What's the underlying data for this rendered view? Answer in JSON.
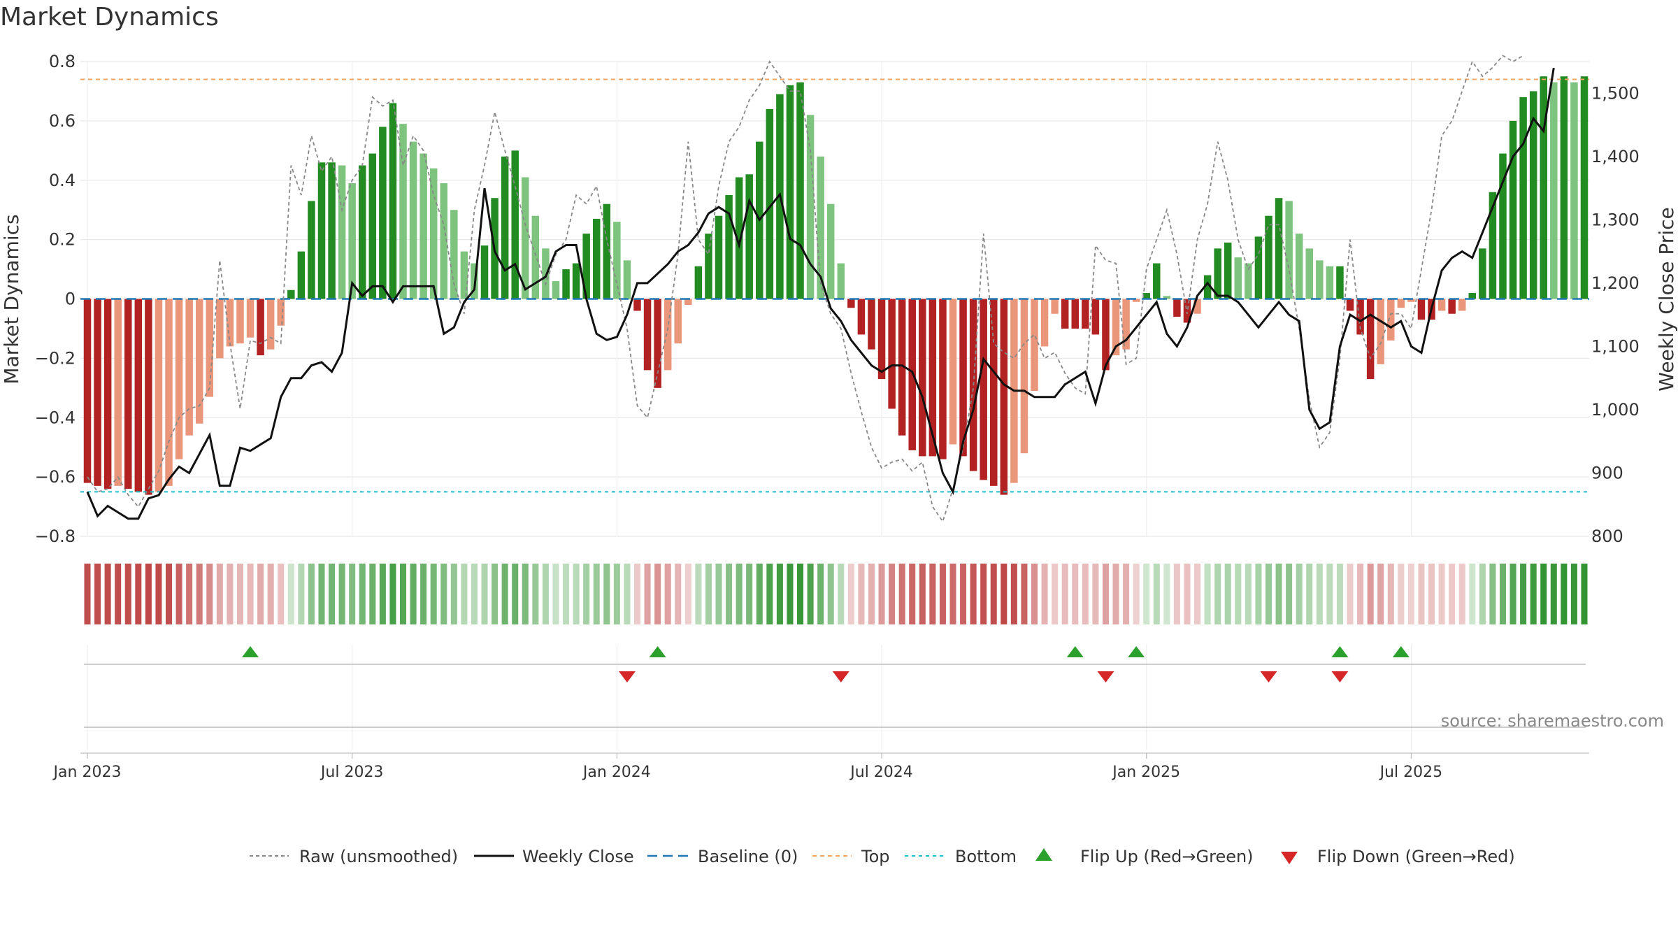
{
  "chart_data": {
    "type": "bar",
    "title": "Market Dynamics",
    "ylabel": "Market Dynamics",
    "y2label": "Weekly Close Price",
    "ylim": [
      -0.8,
      0.8
    ],
    "y2lim": [
      800,
      1550
    ],
    "yticks": [
      "0.8",
      "0.6",
      "0.4",
      "0.2",
      "0",
      "−0.2",
      "−0.4",
      "−0.6",
      "−0.8"
    ],
    "y2ticks": [
      "1,500",
      "1,400",
      "1,300",
      "1,200",
      "1,100",
      "1,000",
      "900",
      "800"
    ],
    "xticks": [
      "Jan 2023",
      "Jul 2023",
      "Jan 2024",
      "Jul 2024",
      "Jan 2025",
      "Jul 2025"
    ],
    "xtick_positions": [
      0,
      26,
      52,
      78,
      104,
      130
    ],
    "x_start": "Jan 2023",
    "weeks": 140,
    "top": 0.74,
    "bottom": -0.65,
    "source": "source: sharemaestro.com",
    "grid": true,
    "legend_position": "bottom",
    "legend": [
      "Raw (unsmoothed)",
      "Weekly Close",
      "Baseline (0)",
      "Top",
      "Bottom",
      "Flip Up (Red→Green)",
      "Flip Down (Green→Red)"
    ],
    "colors": {
      "strong_green": "#228b22",
      "light_green": "#7ec47e",
      "strong_red": "#b22222",
      "light_red": "#e9967a",
      "raw": "#888888",
      "close": "#111111",
      "baseline": "#1f77b4",
      "top": "#f4a460",
      "bottom": "#17becf",
      "flip_up": "#2ca02c",
      "flip_down": "#d62728"
    },
    "flips_up": [
      16,
      56,
      97,
      103,
      123,
      129
    ],
    "flips_down": [
      53,
      74,
      100,
      116,
      123
    ],
    "series": [
      {
        "name": "Market Dynamics",
        "values": [
          -0.62,
          -0.63,
          -0.64,
          -0.63,
          -0.64,
          -0.65,
          -0.66,
          -0.65,
          -0.63,
          -0.54,
          -0.46,
          -0.42,
          -0.33,
          -0.2,
          -0.16,
          -0.15,
          -0.13,
          -0.19,
          -0.17,
          -0.09,
          0.03,
          0.16,
          0.33,
          0.46,
          0.46,
          0.45,
          0.39,
          0.45,
          0.49,
          0.58,
          0.66,
          0.59,
          0.53,
          0.49,
          0.44,
          0.39,
          0.3,
          0.16,
          0.12,
          0.18,
          0.34,
          0.48,
          0.5,
          0.41,
          0.28,
          0.17,
          0.06,
          0.1,
          0.12,
          0.22,
          0.27,
          0.32,
          0.26,
          0.13,
          -0.04,
          -0.24,
          -0.3,
          -0.24,
          -0.15,
          -0.02,
          0.11,
          0.22,
          0.28,
          0.35,
          0.41,
          0.42,
          0.53,
          0.64,
          0.69,
          0.72,
          0.73,
          0.62,
          0.48,
          0.32,
          0.12,
          -0.03,
          -0.12,
          -0.17,
          -0.27,
          -0.37,
          -0.46,
          -0.51,
          -0.53,
          -0.53,
          -0.54,
          -0.49,
          -0.53,
          -0.58,
          -0.61,
          -0.63,
          -0.66,
          -0.62,
          -0.52,
          -0.31,
          -0.16,
          -0.05,
          -0.1,
          -0.1,
          -0.1,
          -0.12,
          -0.24,
          -0.19,
          -0.17,
          -0.01,
          0.02,
          0.12,
          0.01,
          -0.06,
          -0.08,
          -0.05,
          0.08,
          0.17,
          0.19,
          0.14,
          0.12,
          0.21,
          0.28,
          0.34,
          0.33,
          0.22,
          0.17,
          0.13,
          0.11,
          0.11,
          -0.04,
          -0.12,
          -0.27,
          -0.22,
          -0.14,
          -0.03,
          -0.01,
          -0.07,
          -0.07,
          -0.04,
          -0.05,
          -0.04,
          0.02,
          0.17,
          0.36,
          0.49,
          0.6,
          0.68,
          0.7,
          0.75,
          0.73,
          0.75,
          0.73,
          0.75
        ]
      },
      {
        "name": "Raw (unsmoothed)",
        "values": [
          -0.6,
          -0.65,
          -0.64,
          -0.6,
          -0.66,
          -0.7,
          -0.64,
          -0.58,
          -0.48,
          -0.4,
          -0.37,
          -0.36,
          -0.3,
          0.13,
          -0.15,
          -0.37,
          -0.14,
          -0.15,
          -0.13,
          -0.15,
          0.45,
          0.35,
          0.55,
          0.43,
          0.48,
          0.3,
          0.4,
          0.45,
          0.68,
          0.65,
          0.67,
          0.45,
          0.55,
          0.5,
          0.35,
          0.25,
          0.05,
          -0.05,
          0.3,
          0.45,
          0.63,
          0.5,
          0.38,
          0.25,
          0.15,
          0.05,
          0.15,
          0.2,
          0.35,
          0.32,
          0.38,
          0.2,
          0.05,
          -0.1,
          -0.36,
          -0.4,
          -0.25,
          -0.1,
          0.15,
          0.53,
          0.2,
          0.15,
          0.38,
          0.53,
          0.58,
          0.67,
          0.72,
          0.8,
          0.75,
          0.7,
          0.7,
          0.5,
          0.05,
          -0.05,
          -0.1,
          -0.25,
          -0.38,
          -0.5,
          -0.57,
          -0.55,
          -0.54,
          -0.58,
          -0.55,
          -0.7,
          -0.75,
          -0.64,
          -0.5,
          -0.3,
          0.22,
          -0.15,
          -0.18,
          -0.2,
          -0.15,
          -0.12,
          -0.2,
          -0.18,
          -0.25,
          -0.3,
          -0.32,
          0.18,
          0.13,
          0.12,
          -0.22,
          -0.2,
          0.1,
          0.2,
          0.3,
          0.15,
          -0.05,
          0.2,
          0.32,
          0.53,
          0.4,
          0.2,
          0.1,
          0.15,
          0.25,
          0.25,
          0.1,
          -0.1,
          -0.34,
          -0.5,
          -0.45,
          -0.2,
          0.2,
          -0.1,
          -0.2,
          -0.15,
          -0.05,
          -0.05,
          -0.1,
          0.1,
          0.3,
          0.55,
          0.6,
          0.7,
          0.8,
          0.75,
          0.78,
          0.82,
          0.8,
          0.82
        ]
      },
      {
        "name": "Weekly Close",
        "values": [
          870,
          832,
          848,
          838,
          828,
          828,
          860,
          865,
          890,
          910,
          900,
          930,
          960,
          880,
          880,
          940,
          935,
          945,
          955,
          1020,
          1050,
          1050,
          1070,
          1075,
          1060,
          1090,
          1200,
          1180,
          1195,
          1195,
          1170,
          1195,
          1195,
          1195,
          1195,
          1120,
          1130,
          1170,
          1190,
          1350,
          1250,
          1220,
          1230,
          1190,
          1200,
          1210,
          1250,
          1260,
          1260,
          1175,
          1120,
          1110,
          1115,
          1150,
          1200,
          1200,
          1215,
          1230,
          1250,
          1260,
          1280,
          1310,
          1320,
          1310,
          1260,
          1330,
          1300,
          1320,
          1340,
          1270,
          1260,
          1230,
          1210,
          1160,
          1140,
          1110,
          1090,
          1070,
          1060,
          1070,
          1070,
          1060,
          1020,
          960,
          900,
          870,
          950,
          1000,
          1080,
          1060,
          1040,
          1030,
          1030,
          1020,
          1020,
          1020,
          1040,
          1050,
          1060,
          1010,
          1070,
          1100,
          1110,
          1130,
          1150,
          1170,
          1120,
          1100,
          1130,
          1180,
          1200,
          1180,
          1180,
          1170,
          1150,
          1130,
          1150,
          1170,
          1150,
          1140,
          1000,
          970,
          980,
          1100,
          1150,
          1140,
          1150,
          1140,
          1130,
          1140,
          1100,
          1090,
          1160,
          1220,
          1240,
          1250,
          1240,
          1280,
          1320,
          1360,
          1400,
          1420,
          1460,
          1440,
          1540
        ]
      }
    ]
  }
}
